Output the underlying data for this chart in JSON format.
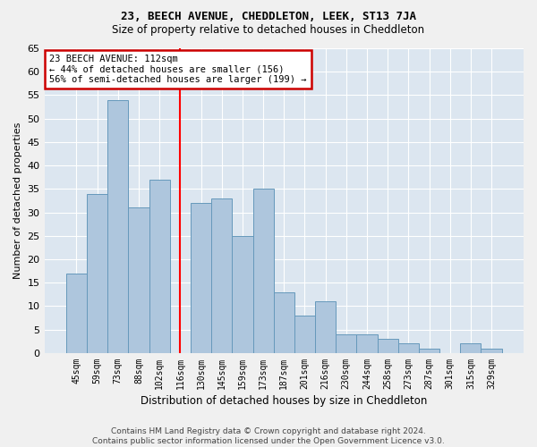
{
  "title": "23, BEECH AVENUE, CHEDDLETON, LEEK, ST13 7JA",
  "subtitle": "Size of property relative to detached houses in Cheddleton",
  "xlabel": "Distribution of detached houses by size in Cheddleton",
  "ylabel": "Number of detached properties",
  "categories": [
    "45sqm",
    "59sqm",
    "73sqm",
    "88sqm",
    "102sqm",
    "116sqm",
    "130sqm",
    "145sqm",
    "159sqm",
    "173sqm",
    "187sqm",
    "201sqm",
    "216sqm",
    "230sqm",
    "244sqm",
    "258sqm",
    "273sqm",
    "287sqm",
    "301sqm",
    "315sqm",
    "329sqm"
  ],
  "values": [
    17,
    34,
    54,
    31,
    37,
    0,
    32,
    33,
    25,
    35,
    13,
    8,
    11,
    4,
    4,
    3,
    2,
    1,
    0,
    2,
    1
  ],
  "bar_color": "#aec6dd",
  "bar_edge_color": "#6699bb",
  "vline_x_index": 5,
  "annotation_text": "23 BEECH AVENUE: 112sqm\n← 44% of detached houses are smaller (156)\n56% of semi-detached houses are larger (199) →",
  "annotation_box_color": "#ffffff",
  "annotation_box_edge_color": "#cc0000",
  "bg_color": "#dce6f0",
  "grid_color": "#ffffff",
  "footer": "Contains HM Land Registry data © Crown copyright and database right 2024.\nContains public sector information licensed under the Open Government Licence v3.0.",
  "ylim": [
    0,
    65
  ],
  "yticks": [
    0,
    5,
    10,
    15,
    20,
    25,
    30,
    35,
    40,
    45,
    50,
    55,
    60,
    65
  ],
  "fig_bg_color": "#f0f0f0",
  "title_fontsize": 9,
  "subtitle_fontsize": 8.5
}
